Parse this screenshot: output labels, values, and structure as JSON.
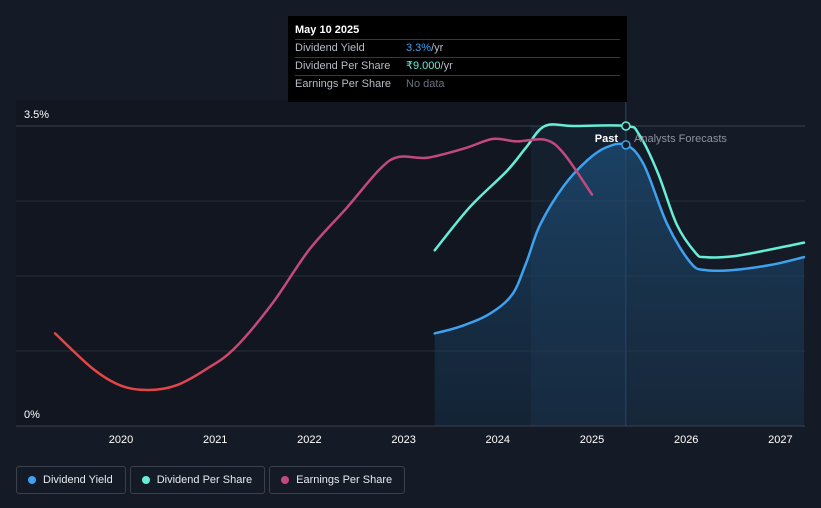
{
  "tooltip": {
    "date": "May 10 2025",
    "rows": [
      {
        "label": "Dividend Yield",
        "value": "3.3%",
        "unit": " /yr"
      },
      {
        "label": "Dividend Per Share",
        "value": "₹9.000",
        "unit": " /yr"
      },
      {
        "label": "Earnings Per Share",
        "value": "No data",
        "unit": ""
      }
    ]
  },
  "labels": {
    "past": "Past",
    "forecast": "Analysts Forecasts"
  },
  "legend": [
    {
      "label": "Dividend Yield",
      "color": "#3da2f0"
    },
    {
      "label": "Dividend Per Share",
      "color": "#66eed8"
    },
    {
      "label": "Earnings Per Share",
      "color": "#c2497f"
    }
  ],
  "chart_data": {
    "type": "line",
    "x_ticks": [
      2020,
      2021,
      2022,
      2023,
      2024,
      2025,
      2026,
      2027
    ],
    "xlim": [
      2019.2,
      2027.25
    ],
    "y_ticks": [
      {
        "value": 0,
        "label": "0%"
      },
      {
        "value": 3.5,
        "label": "3.5%"
      }
    ],
    "ylim": [
      0,
      3.5
    ],
    "past_forecast_boundary": 2025.36,
    "highlight_band": [
      2024.35,
      2025.36
    ],
    "series": [
      {
        "name": "Dividend Yield",
        "color": "#3da2f0",
        "area": true,
        "points": [
          [
            2023.33,
            1.08
          ],
          [
            2023.6,
            1.16
          ],
          [
            2023.9,
            1.3
          ],
          [
            2024.15,
            1.53
          ],
          [
            2024.3,
            1.9
          ],
          [
            2024.45,
            2.35
          ],
          [
            2024.7,
            2.8
          ],
          [
            2024.95,
            3.1
          ],
          [
            2025.15,
            3.25
          ],
          [
            2025.36,
            3.28
          ],
          [
            2025.55,
            3.05
          ],
          [
            2025.8,
            2.35
          ],
          [
            2026.05,
            1.9
          ],
          [
            2026.2,
            1.82
          ],
          [
            2026.5,
            1.82
          ],
          [
            2026.9,
            1.88
          ],
          [
            2027.25,
            1.97
          ]
        ]
      },
      {
        "name": "Dividend Per Share",
        "color": "#66eed8",
        "area": false,
        "points": [
          [
            2023.33,
            2.05
          ],
          [
            2023.7,
            2.55
          ],
          [
            2024.1,
            2.98
          ],
          [
            2024.3,
            3.25
          ],
          [
            2024.5,
            3.5
          ],
          [
            2024.8,
            3.5
          ],
          [
            2025.36,
            3.5
          ],
          [
            2025.5,
            3.4
          ],
          [
            2025.7,
            2.95
          ],
          [
            2025.9,
            2.35
          ],
          [
            2026.1,
            2.02
          ],
          [
            2026.2,
            1.97
          ],
          [
            2026.5,
            1.98
          ],
          [
            2026.9,
            2.06
          ],
          [
            2027.25,
            2.14
          ]
        ]
      },
      {
        "name": "Earnings Per Share",
        "color": "#c2497f",
        "color_start": "#e64545",
        "area": false,
        "points": [
          [
            2019.3,
            1.08
          ],
          [
            2019.7,
            0.67
          ],
          [
            2020.0,
            0.47
          ],
          [
            2020.3,
            0.42
          ],
          [
            2020.6,
            0.48
          ],
          [
            2020.9,
            0.66
          ],
          [
            2021.2,
            0.9
          ],
          [
            2021.6,
            1.42
          ],
          [
            2022.0,
            2.06
          ],
          [
            2022.4,
            2.55
          ],
          [
            2022.75,
            3.0
          ],
          [
            2022.95,
            3.14
          ],
          [
            2023.25,
            3.13
          ],
          [
            2023.65,
            3.24
          ],
          [
            2023.95,
            3.35
          ],
          [
            2024.2,
            3.32
          ],
          [
            2024.5,
            3.34
          ],
          [
            2024.7,
            3.18
          ],
          [
            2025.0,
            2.7
          ]
        ]
      }
    ],
    "markers": [
      {
        "series": "Dividend Per Share",
        "x": 2025.36,
        "y": 3.5
      },
      {
        "series": "Dividend Yield",
        "x": 2025.36,
        "y": 3.28
      }
    ]
  }
}
